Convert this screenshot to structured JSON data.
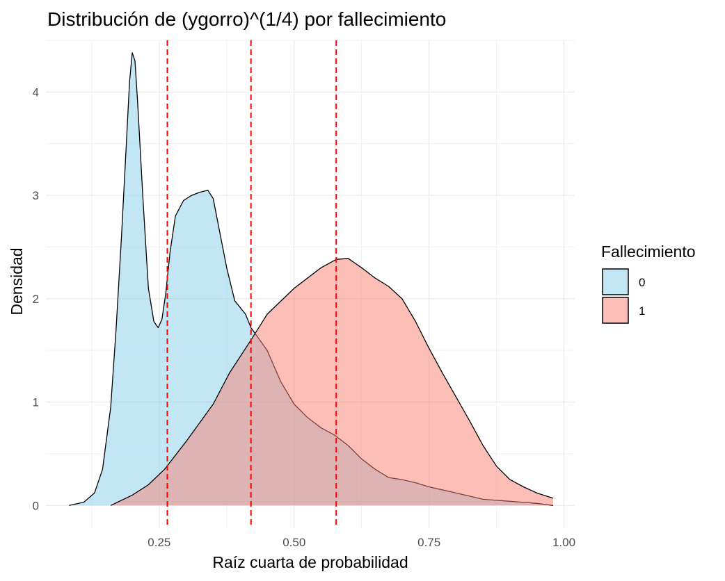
{
  "chart_data": {
    "type": "area",
    "title": "Distribución de (ygorro)^(1/4) por fallecimiento",
    "xlabel": "Raíz cuarta de probabilidad",
    "ylabel": "Densidad",
    "xlim": [
      0.04,
      1.02
    ],
    "ylim": [
      -0.22,
      4.5
    ],
    "x_ticks": [
      0.25,
      0.5,
      0.75,
      1.0
    ],
    "x_tick_labels": [
      "0.25",
      "0.50",
      "0.75",
      "1.00"
    ],
    "y_ticks": [
      0,
      1,
      2,
      3,
      4
    ],
    "y_tick_labels": [
      "0",
      "1",
      "2",
      "3",
      "4"
    ],
    "grid": true,
    "legend": {
      "title": "Fallecimiento",
      "position": "right"
    },
    "vlines": [
      0.265,
      0.42,
      0.578
    ],
    "vline_color": "#ff0000",
    "series": [
      {
        "name": "0",
        "fill": "#87ceeb",
        "points": [
          [
            0.083,
            0.0
          ],
          [
            0.11,
            0.03
          ],
          [
            0.13,
            0.12
          ],
          [
            0.145,
            0.35
          ],
          [
            0.16,
            0.95
          ],
          [
            0.17,
            1.7
          ],
          [
            0.18,
            2.6
          ],
          [
            0.188,
            3.4
          ],
          [
            0.195,
            4.1
          ],
          [
            0.2,
            4.38
          ],
          [
            0.205,
            4.3
          ],
          [
            0.21,
            3.9
          ],
          [
            0.22,
            2.95
          ],
          [
            0.23,
            2.1
          ],
          [
            0.24,
            1.78
          ],
          [
            0.248,
            1.72
          ],
          [
            0.255,
            1.8
          ],
          [
            0.262,
            2.05
          ],
          [
            0.27,
            2.45
          ],
          [
            0.28,
            2.8
          ],
          [
            0.295,
            2.95
          ],
          [
            0.31,
            3.0
          ],
          [
            0.325,
            3.03
          ],
          [
            0.34,
            3.05
          ],
          [
            0.35,
            2.97
          ],
          [
            0.36,
            2.7
          ],
          [
            0.375,
            2.3
          ],
          [
            0.39,
            1.98
          ],
          [
            0.41,
            1.85
          ],
          [
            0.42,
            1.72
          ],
          [
            0.45,
            1.5
          ],
          [
            0.475,
            1.2
          ],
          [
            0.5,
            0.98
          ],
          [
            0.525,
            0.85
          ],
          [
            0.55,
            0.75
          ],
          [
            0.575,
            0.68
          ],
          [
            0.6,
            0.58
          ],
          [
            0.625,
            0.45
          ],
          [
            0.65,
            0.35
          ],
          [
            0.675,
            0.27
          ],
          [
            0.7,
            0.25
          ],
          [
            0.725,
            0.22
          ],
          [
            0.75,
            0.18
          ],
          [
            0.8,
            0.12
          ],
          [
            0.85,
            0.06
          ],
          [
            0.9,
            0.04
          ],
          [
            0.95,
            0.02
          ],
          [
            0.98,
            0.0
          ]
        ]
      },
      {
        "name": "1",
        "fill": "#fa8072",
        "points": [
          [
            0.16,
            0.0
          ],
          [
            0.2,
            0.1
          ],
          [
            0.23,
            0.2
          ],
          [
            0.26,
            0.35
          ],
          [
            0.3,
            0.62
          ],
          [
            0.35,
            0.98
          ],
          [
            0.38,
            1.28
          ],
          [
            0.42,
            1.6
          ],
          [
            0.45,
            1.85
          ],
          [
            0.5,
            2.1
          ],
          [
            0.55,
            2.3
          ],
          [
            0.578,
            2.38
          ],
          [
            0.6,
            2.39
          ],
          [
            0.625,
            2.3
          ],
          [
            0.65,
            2.2
          ],
          [
            0.675,
            2.12
          ],
          [
            0.7,
            2.0
          ],
          [
            0.725,
            1.78
          ],
          [
            0.75,
            1.52
          ],
          [
            0.775,
            1.28
          ],
          [
            0.8,
            1.05
          ],
          [
            0.825,
            0.82
          ],
          [
            0.85,
            0.58
          ],
          [
            0.875,
            0.38
          ],
          [
            0.9,
            0.25
          ],
          [
            0.925,
            0.18
          ],
          [
            0.95,
            0.12
          ],
          [
            0.98,
            0.07
          ]
        ]
      }
    ]
  }
}
